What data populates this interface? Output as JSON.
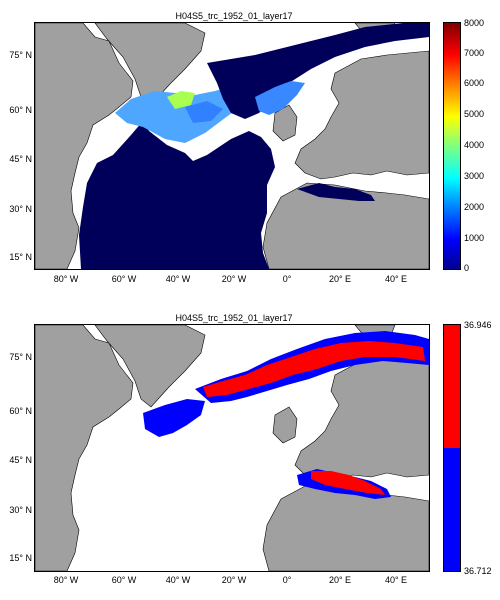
{
  "panels": [
    {
      "title": "H04S5_trc_1952_01_layer17",
      "lat_labels": [
        "75° N",
        "60° N",
        "45° N",
        "30° N",
        "15° N"
      ],
      "lon_labels": [
        "80° W",
        "60° W",
        "40° W",
        "20° W",
        "0°",
        "20° E",
        "40° E"
      ],
      "colorbar": {
        "type": "jet",
        "ticks": [
          "0",
          "1000",
          "2000",
          "3000",
          "4000",
          "5000",
          "6000",
          "7000",
          "8000"
        ],
        "range": [
          0,
          8000
        ]
      },
      "colors": {
        "land": "#a0a0a0",
        "ocean_field": "#00005a",
        "high": "#80ff80",
        "mid": "#40a0ff"
      }
    },
    {
      "title": "H04S5_trc_1952_01_layer17",
      "lat_labels": [
        "75° N",
        "60° N",
        "45° N",
        "30° N",
        "15° N"
      ],
      "lon_labels": [
        "80° W",
        "60° W",
        "40° W",
        "20° W",
        "0°",
        "20° E",
        "40° E"
      ],
      "colorbar": {
        "type": "two-color",
        "top_label": "36.946",
        "bottom_label": "36.712",
        "upper_color": "#ff0000",
        "lower_color": "#0000ff"
      },
      "colors": {
        "land": "#a0a0a0",
        "red": "#ff0000",
        "blue": "#0000ff"
      }
    }
  ]
}
